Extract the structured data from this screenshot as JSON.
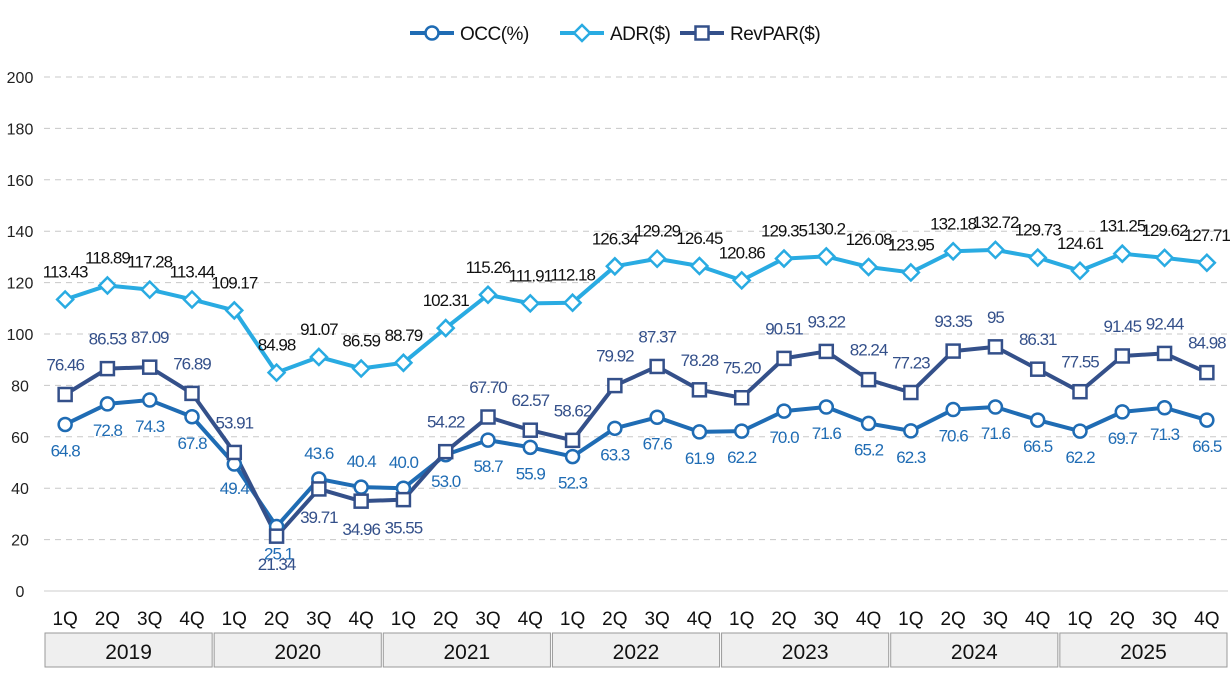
{
  "chart_data": {
    "type": "line",
    "title": "",
    "xlabel": "",
    "ylabel": "",
    "ylim": [
      0,
      200
    ],
    "y_ticks": [
      "0",
      "20",
      "40",
      "60",
      "80",
      "100",
      "120",
      "140",
      "160",
      "180",
      "200"
    ],
    "grid": true,
    "legend_position": "top-center",
    "categories": [
      "1Q",
      "2Q",
      "3Q",
      "4Q",
      "1Q",
      "2Q",
      "3Q",
      "4Q",
      "1Q",
      "2Q",
      "3Q",
      "4Q",
      "1Q",
      "2Q",
      "3Q",
      "4Q",
      "1Q",
      "2Q",
      "3Q",
      "4Q",
      "1Q",
      "2Q",
      "3Q",
      "4Q",
      "1Q",
      "2Q",
      "3Q",
      "4Q"
    ],
    "years": [
      "2019",
      "2020",
      "2021",
      "2022",
      "2023",
      "2024",
      "2025"
    ],
    "series": [
      {
        "name": "OCC(%)",
        "marker": "circle",
        "color": "#1f6cb4",
        "values": [
          64.8,
          72.8,
          74.3,
          67.8,
          49.4,
          25.1,
          43.6,
          40.4,
          40.0,
          53.0,
          58.7,
          55.9,
          52.3,
          63.3,
          67.6,
          61.9,
          62.2,
          70.0,
          71.6,
          65.2,
          62.3,
          70.6,
          71.6,
          66.5,
          62.2,
          69.7,
          71.3,
          66.5
        ],
        "labels": [
          "64.8",
          "72.8",
          "74.3",
          "67.8",
          "49.4",
          "25.1",
          "43.6",
          "40.4",
          "40.0",
          "53.0",
          "58.7",
          "55.9",
          "52.3",
          "63.3",
          "67.6",
          "61.9",
          "62.2",
          "70.0",
          "71.6",
          "65.2",
          "62.3",
          "70.6",
          "71.6",
          "66.5",
          "62.2",
          "69.7",
          "71.3",
          "66.5"
        ]
      },
      {
        "name": "ADR($)",
        "marker": "diamond",
        "color": "#29abe2",
        "values": [
          113.43,
          118.89,
          117.28,
          113.44,
          109.17,
          84.98,
          91.07,
          86.59,
          88.79,
          102.31,
          115.26,
          111.91,
          112.18,
          126.34,
          129.29,
          126.45,
          120.86,
          129.35,
          130.2,
          126.08,
          123.95,
          132.18,
          132.72,
          129.73,
          124.61,
          131.25,
          129.62,
          127.71
        ],
        "labels": [
          "113.43",
          "118.89",
          "117.28",
          "113.44",
          "109.17",
          "84.98",
          "91.07",
          "86.59",
          "88.79",
          "102.31",
          "115.26",
          "111.91",
          "112.18",
          "126.34",
          "129.29",
          "126.45",
          "120.86",
          "129.35",
          "130.2",
          "126.08",
          "123.95",
          "132.18",
          "132.72",
          "129.73",
          "124.61",
          "131.25",
          "129.62",
          "127.71"
        ]
      },
      {
        "name": "RevPAR($)",
        "marker": "square",
        "color": "#34508a",
        "values": [
          76.46,
          86.53,
          87.09,
          76.89,
          53.91,
          21.34,
          39.71,
          34.96,
          35.55,
          54.22,
          67.7,
          62.57,
          58.62,
          79.92,
          87.37,
          78.28,
          75.2,
          90.51,
          93.22,
          82.24,
          77.23,
          93.35,
          95,
          86.31,
          77.55,
          91.45,
          92.44,
          84.98
        ],
        "labels": [
          "76.46",
          "86.53",
          "87.09",
          "76.89",
          "53.91",
          "21.34",
          "39.71",
          "34.96",
          "35.55",
          "54.22",
          "67.70",
          "62.57",
          "58.62",
          "79.92",
          "87.37",
          "78.28",
          "75.20",
          "90.51",
          "93.22",
          "82.24",
          "77.23",
          "93.35",
          "95",
          "86.31",
          "77.55",
          "91.45",
          "92.44",
          "84.98"
        ]
      }
    ]
  }
}
